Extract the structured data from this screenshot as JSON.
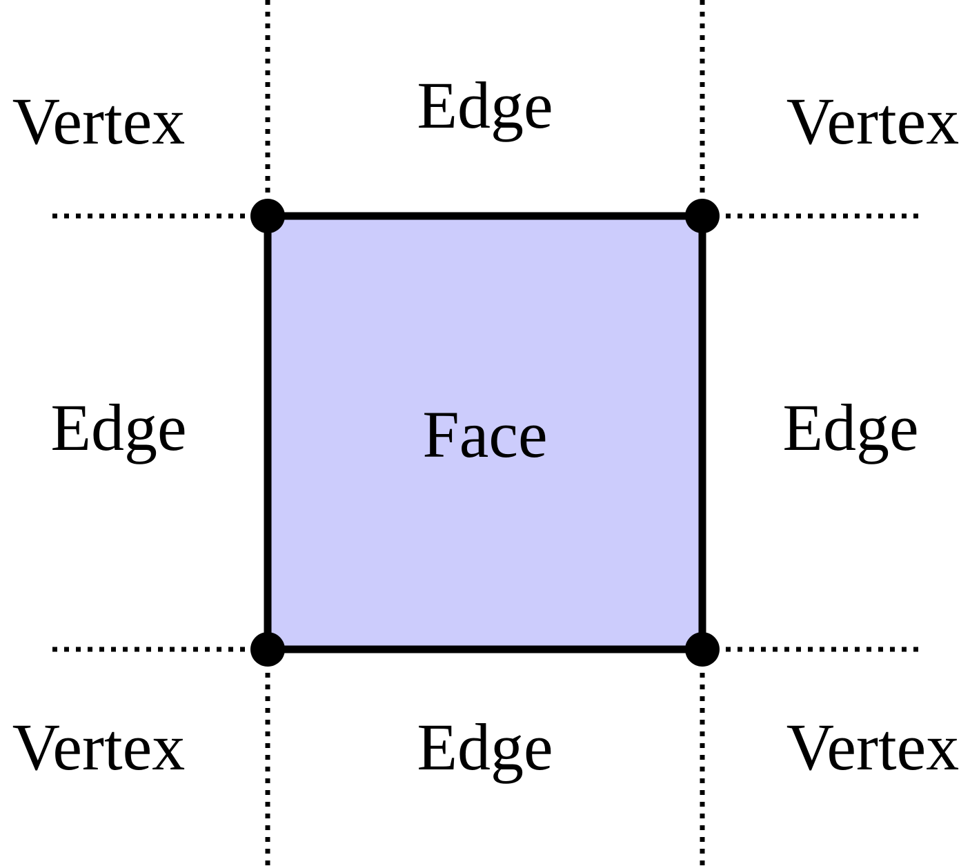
{
  "diagram": {
    "face_label": "Face",
    "face_fill": "#ccccfc",
    "edge_color": "#000000",
    "vertex_color": "#000000",
    "labels": {
      "vertex_top_left": "Vertex",
      "edge_top": "Edge",
      "vertex_top_right": "Vertex",
      "edge_left": "Edge",
      "edge_right": "Edge",
      "vertex_bottom_left": "Vertex",
      "edge_bottom": "Edge",
      "vertex_bottom_right": "Vertex"
    }
  }
}
